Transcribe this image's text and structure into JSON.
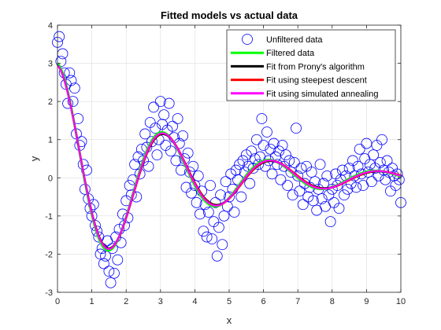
{
  "chart_data": {
    "type": "scatter",
    "title": "Fitted models vs actual data",
    "xlabel": "x",
    "ylabel": "y",
    "xlim": [
      0,
      10
    ],
    "ylim": [
      -3,
      4
    ],
    "xticks": [
      "0",
      "1",
      "2",
      "3",
      "4",
      "5",
      "6",
      "7",
      "8",
      "9",
      "10"
    ],
    "yticks": [
      "-3",
      "-2",
      "-1",
      "0",
      "1",
      "2",
      "3",
      "4"
    ],
    "grid": true,
    "legend_position": "top-right",
    "series": [
      {
        "name": "Unfiltered data",
        "style": "markers",
        "color": "#0000ff",
        "x": [
          0.0,
          0.05,
          0.1,
          0.15,
          0.2,
          0.25,
          0.3,
          0.35,
          0.4,
          0.45,
          0.5,
          0.55,
          0.6,
          0.65,
          0.7,
          0.75,
          0.8,
          0.85,
          0.9,
          0.95,
          1.0,
          1.05,
          1.1,
          1.15,
          1.2,
          1.25,
          1.3,
          1.35,
          1.4,
          1.45,
          1.5,
          1.55,
          1.6,
          1.65,
          1.7,
          1.75,
          1.8,
          1.85,
          1.9,
          1.95,
          2.0,
          2.05,
          2.1,
          2.15,
          2.2,
          2.25,
          2.3,
          2.35,
          2.4,
          2.45,
          2.5,
          2.55,
          2.6,
          2.65,
          2.7,
          2.75,
          2.8,
          2.85,
          2.9,
          2.95,
          3.0,
          3.05,
          3.1,
          3.15,
          3.2,
          3.25,
          3.3,
          3.35,
          3.4,
          3.45,
          3.5,
          3.55,
          3.6,
          3.65,
          3.7,
          3.75,
          3.8,
          3.85,
          3.9,
          3.95,
          4.0,
          4.05,
          4.1,
          4.15,
          4.2,
          4.25,
          4.3,
          4.35,
          4.4,
          4.45,
          4.5,
          4.55,
          4.6,
          4.65,
          4.7,
          4.75,
          4.8,
          4.85,
          4.9,
          4.95,
          5.0,
          5.05,
          5.1,
          5.15,
          5.2,
          5.25,
          5.3,
          5.35,
          5.4,
          5.45,
          5.5,
          5.55,
          5.6,
          5.65,
          5.7,
          5.75,
          5.8,
          5.85,
          5.9,
          5.95,
          6.0,
          6.05,
          6.1,
          6.15,
          6.2,
          6.25,
          6.3,
          6.35,
          6.4,
          6.45,
          6.5,
          6.55,
          6.6,
          6.65,
          6.7,
          6.75,
          6.8,
          6.85,
          6.9,
          6.95,
          7.0,
          7.05,
          7.1,
          7.15,
          7.2,
          7.25,
          7.3,
          7.35,
          7.4,
          7.45,
          7.5,
          7.55,
          7.6,
          7.65,
          7.7,
          7.75,
          7.8,
          7.85,
          7.9,
          7.95,
          8.0,
          8.05,
          8.1,
          8.15,
          8.2,
          8.25,
          8.3,
          8.35,
          8.4,
          8.45,
          8.5,
          8.55,
          8.6,
          8.65,
          8.7,
          8.75,
          8.8,
          8.85,
          8.9,
          8.95,
          9.0,
          9.05,
          9.1,
          9.15,
          9.2,
          9.25,
          9.3,
          9.35,
          9.4,
          9.45,
          9.5,
          9.55,
          9.6,
          9.65,
          9.7,
          9.75,
          9.8,
          9.85,
          9.9,
          9.95,
          10.0
        ],
        "y": [
          3.55,
          3.7,
          3.05,
          3.25,
          2.75,
          2.45,
          1.95,
          2.75,
          2.55,
          2.0,
          2.35,
          1.15,
          1.55,
          0.85,
          0.95,
          0.35,
          -0.3,
          0.2,
          -0.55,
          -0.8,
          -1.0,
          -0.7,
          -1.25,
          -1.4,
          -1.55,
          -2.0,
          -1.85,
          -2.25,
          -2.05,
          -1.65,
          -2.45,
          -2.75,
          -1.85,
          -2.5,
          -1.55,
          -2.15,
          -1.35,
          -1.7,
          -0.95,
          -1.25,
          -0.6,
          -1.05,
          -0.2,
          -0.45,
          -0.05,
          0.35,
          -0.5,
          0.55,
          0.1,
          0.75,
          0.45,
          1.15,
          0.8,
          0.3,
          1.45,
          0.95,
          1.85,
          1.3,
          0.6,
          1.0,
          2.0,
          1.4,
          1.65,
          0.85,
          1.25,
          1.95,
          0.7,
          1.35,
          1.05,
          0.45,
          1.55,
          0.9,
          0.2,
          1.1,
          0.5,
          -0.25,
          0.65,
          0.15,
          -0.4,
          0.3,
          -0.2,
          -0.65,
          0.05,
          -0.95,
          -0.35,
          -1.4,
          -0.7,
          -1.55,
          -0.9,
          -0.2,
          -1.6,
          -1.15,
          -0.65,
          -2.05,
          -1.3,
          -0.45,
          -1.75,
          -1.0,
          -0.1,
          -0.75,
          -0.5,
          0.1,
          -0.3,
          -0.9,
          0.2,
          -0.05,
          0.35,
          -0.5,
          0.45,
          0.15,
          0.6,
          0.3,
          -0.15,
          0.7,
          0.25,
          0.5,
          1.0,
          0.35,
          0.55,
          1.55,
          0.85,
          0.3,
          1.2,
          0.45,
          0.75,
          0.1,
          0.9,
          0.55,
          0.35,
          0.7,
          -0.05,
          0.85,
          0.3,
          0.6,
          -0.2,
          0.45,
          0.15,
          -0.45,
          0.4,
          1.3,
          0.05,
          -0.35,
          0.25,
          -0.7,
          -0.15,
          0.3,
          -0.5,
          -0.25,
          0.15,
          -0.6,
          -0.1,
          -0.85,
          -0.3,
          0.35,
          -0.55,
          -0.15,
          -0.75,
          0.05,
          -0.45,
          -1.15,
          -0.3,
          -0.65,
          0.1,
          -0.2,
          -0.8,
          -0.05,
          0.2,
          -0.45,
          0.05,
          -0.3,
          0.25,
          -0.15,
          0.45,
          0.05,
          -0.25,
          0.3,
          0.75,
          0.1,
          -0.2,
          0.5,
          0.9,
          0.15,
          0.35,
          -0.1,
          0.6,
          0.25,
          0.85,
          0.05,
          0.4,
          1.0,
          0.2,
          -0.05,
          0.45,
          0.15,
          -0.35,
          0.25,
          0.05,
          -0.2,
          0.1,
          -0.05,
          -0.65
        ]
      },
      {
        "name": "Filtered data",
        "style": "line",
        "color": "#00ff00",
        "params": {
          "amp": 3.0,
          "decay": 0.3,
          "omega": 2.02,
          "phase": 0.0
        }
      },
      {
        "name": "Fit from Prony's algorithm",
        "style": "line",
        "color": "#000000",
        "params": {
          "amp": 2.95,
          "decay": 0.305,
          "omega": 2.0,
          "phase": 0.0
        }
      },
      {
        "name": "Fit using steepest descent",
        "style": "line",
        "color": "#ff0000",
        "params": {
          "amp": 2.95,
          "decay": 0.3,
          "omega": 2.0,
          "phase": 0.0
        }
      },
      {
        "name": "Fit using simulated annealing",
        "style": "line",
        "color": "#ff00ff",
        "params": {
          "amp": 2.95,
          "decay": 0.3,
          "omega": 2.01,
          "phase": 0.0
        }
      }
    ]
  }
}
